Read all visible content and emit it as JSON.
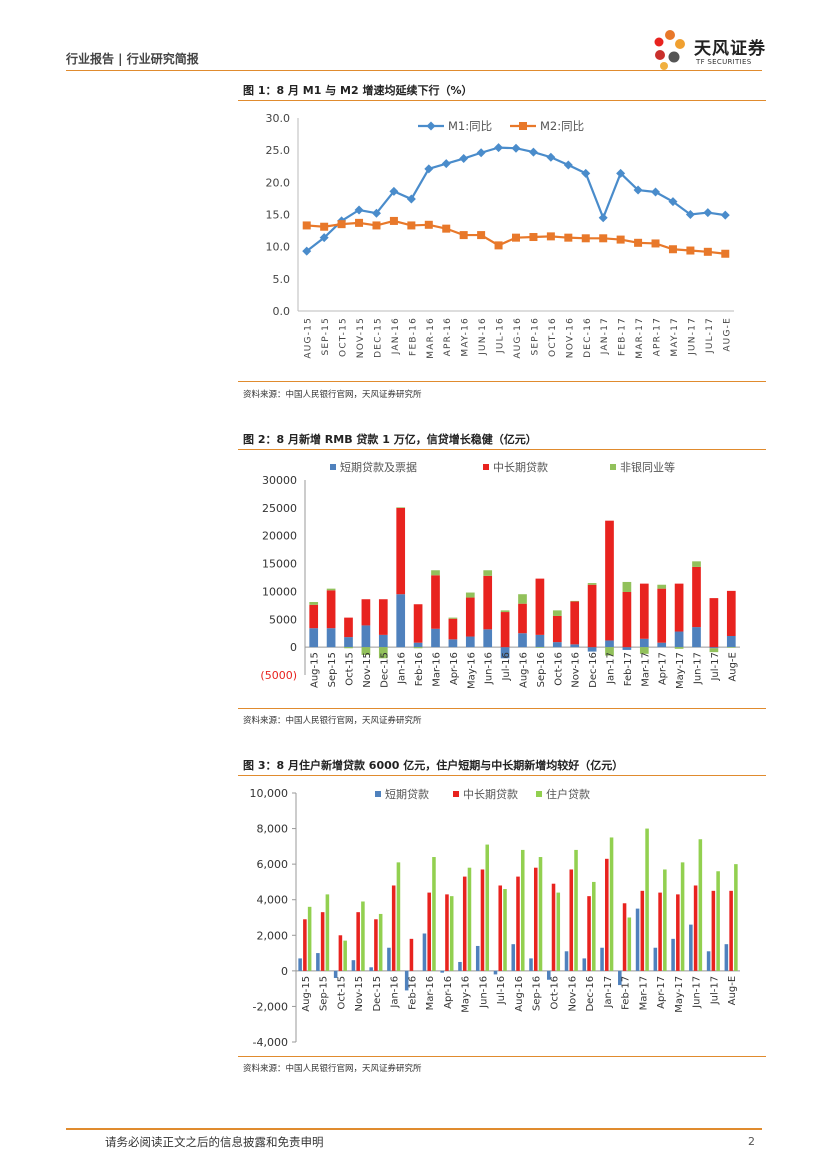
{
  "header": {
    "left": "行业报告 | 行业研究简报",
    "logo_cn": "天风证券",
    "logo_en": "TF SECURITIES"
  },
  "figures": [
    {
      "title": "图 1：8 月 M1 与 M2 增速均延续下行（%）",
      "source": "资料来源：中国人民银行官网，天风证券研究所"
    },
    {
      "title": "图 2：8 月新增 RMB 贷款 1 万亿，信贷增长稳健（亿元）",
      "source": "资料来源：中国人民银行官网，天风证券研究所"
    },
    {
      "title": "图 3：8 月住户新增贷款 6000 亿元，住户短期与中长期新增均较好（亿元）",
      "source": "资料来源：中国人民银行官网，天风证券研究所"
    }
  ],
  "footer": {
    "disclaimer": "请务必阅读正文之后的信息披露和免责申明",
    "page": "2"
  },
  "chart_data": [
    {
      "type": "line",
      "categories": [
        "AUG-15",
        "SEP-15",
        "OCT-15",
        "NOV-15",
        "DEC-15",
        "JAN-16",
        "FEB-16",
        "MAR-16",
        "APR-16",
        "MAY-16",
        "JUN-16",
        "JUL-16",
        "AUG-16",
        "SEP-16",
        "OCT-16",
        "NOV-16",
        "DEC-16",
        "JAN-17",
        "FEB-17",
        "MAR-17",
        "APR-17",
        "MAY-17",
        "JUN-17",
        "JUL-17",
        "AUG-E"
      ],
      "series": [
        {
          "name": "M1:同比",
          "color": "#4a8ccb",
          "values": [
            9.3,
            11.4,
            14.0,
            15.7,
            15.2,
            18.6,
            17.4,
            22.1,
            22.9,
            23.7,
            24.6,
            25.4,
            25.3,
            24.7,
            23.9,
            22.7,
            21.4,
            14.5,
            21.4,
            18.8,
            18.5,
            17.0,
            15.0,
            15.3,
            14.9
          ]
        },
        {
          "name": "M2:同比",
          "color": "#e8782a",
          "values": [
            13.3,
            13.1,
            13.5,
            13.7,
            13.3,
            14.0,
            13.3,
            13.4,
            12.8,
            11.8,
            11.8,
            10.2,
            11.4,
            11.5,
            11.6,
            11.4,
            11.3,
            11.3,
            11.1,
            10.6,
            10.5,
            9.6,
            9.4,
            9.2,
            8.9
          ]
        }
      ],
      "ylim": [
        0,
        30
      ],
      "yticks": [
        "0.0",
        "5.0",
        "10.0",
        "15.0",
        "20.0",
        "25.0",
        "30.0"
      ]
    },
    {
      "type": "bar",
      "stacked": true,
      "categories": [
        "Aug-15",
        "Sep-15",
        "Oct-15",
        "Nov-15",
        "Dec-15",
        "Jan-16",
        "Feb-16",
        "Mar-16",
        "Apr-16",
        "May-16",
        "Jun-16",
        "Jul-16",
        "Aug-16",
        "Sep-16",
        "Oct-16",
        "Nov-16",
        "Dec-16",
        "Jan-17",
        "Feb-17",
        "Mar-17",
        "Apr-17",
        "May-17",
        "Jun-17",
        "Jul-17",
        "Aug-E"
      ],
      "series": [
        {
          "name": "短期贷款及票据",
          "color": "#4f81bd",
          "values": [
            3400,
            3400,
            1800,
            3900,
            2200,
            9500,
            800,
            3300,
            1400,
            1900,
            3200,
            -2000,
            2500,
            2200,
            900,
            500,
            -800,
            1200,
            -500,
            1500,
            800,
            2800,
            3600,
            -200,
            2000
          ]
        },
        {
          "name": "中长期贷款",
          "color": "#e8231f",
          "values": [
            4200,
            6800,
            3500,
            4700,
            6400,
            15500,
            6900,
            9600,
            3700,
            7000,
            9600,
            6300,
            5300,
            10100,
            4700,
            7700,
            11200,
            21500,
            9900,
            9900,
            9700,
            8600,
            10800,
            8800,
            8100
          ]
        },
        {
          "name": "非银同业等",
          "color": "#92c15b",
          "values": [
            500,
            300,
            -200,
            -1400,
            -2000,
            100,
            -200,
            900,
            200,
            900,
            1000,
            300,
            1700,
            -100,
            1000,
            100,
            300,
            -1500,
            1800,
            -1200,
            700,
            -300,
            1000,
            -700,
            -100
          ]
        }
      ],
      "ylim": [
        -5000,
        30000
      ],
      "yticks": [
        "(5000)",
        "0",
        "5000",
        "10000",
        "15000",
        "20000",
        "25000",
        "30000"
      ]
    },
    {
      "type": "bar",
      "categories": [
        "Aug-15",
        "Sep-15",
        "Oct-15",
        "Nov-15",
        "Dec-15",
        "Jan-16",
        "Feb-16",
        "Mar-16",
        "Apr-16",
        "May-16",
        "Jun-16",
        "Jul-16",
        "Aug-16",
        "Sep-16",
        "Oct-16",
        "Nov-16",
        "Dec-16",
        "Jan-17",
        "Feb-17",
        "Mar-17",
        "Apr-17",
        "May-17",
        "Jun-17",
        "Jul-17",
        "Aug-E"
      ],
      "series": [
        {
          "name": "短期贷款",
          "color": "#4f81bd",
          "values": [
            700,
            1000,
            -400,
            600,
            200,
            1300,
            -1100,
            2100,
            -100,
            500,
            1400,
            -200,
            1500,
            700,
            -500,
            1100,
            700,
            1300,
            -800,
            3500,
            1300,
            1800,
            2600,
            1100,
            1500
          ]
        },
        {
          "name": "中长期贷款",
          "color": "#e8231f",
          "values": [
            2900,
            3300,
            2000,
            3300,
            2900,
            4800,
            1800,
            4400,
            4300,
            5300,
            5700,
            4800,
            5300,
            5800,
            4900,
            5700,
            4200,
            6300,
            3800,
            4500,
            4400,
            4300,
            4800,
            4500,
            4500
          ]
        },
        {
          "name": "住户贷款",
          "color": "#92d050",
          "values": [
            3600,
            4300,
            1700,
            3900,
            3200,
            6100,
            0,
            6400,
            4200,
            5800,
            7100,
            4600,
            6800,
            6400,
            4400,
            6800,
            5000,
            7500,
            3000,
            8000,
            5700,
            6100,
            7400,
            5600,
            6000
          ]
        }
      ],
      "ylim": [
        -4000,
        10000
      ],
      "yticks": [
        "-4,000",
        "-2,000",
        "0",
        "2,000",
        "4,000",
        "6,000",
        "8,000",
        "10,000"
      ]
    }
  ]
}
